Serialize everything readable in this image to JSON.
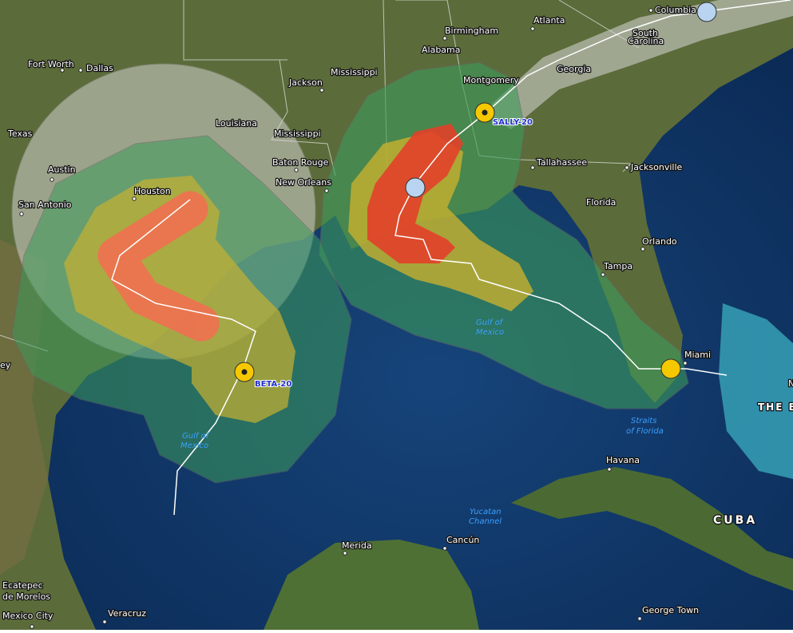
{
  "map": {
    "labels": [
      {
        "text": "Fort Worth"
      },
      {
        "text": "Dallas"
      },
      {
        "text": "Texas"
      },
      {
        "text": "Austin"
      },
      {
        "text": "San Antonio"
      },
      {
        "text": "Houston"
      },
      {
        "text": "Louisiana"
      },
      {
        "text": "Mississippi"
      },
      {
        "text": "Mississippi"
      },
      {
        "text": "Jackson"
      },
      {
        "text": "Baton Rouge"
      },
      {
        "text": "New Orleans"
      },
      {
        "text": "Birmingham"
      },
      {
        "text": "Alabama"
      },
      {
        "text": "Atlanta"
      },
      {
        "text": "Georgia"
      },
      {
        "text": "Columbia"
      },
      {
        "text": "South"
      },
      {
        "text": "Carolina"
      },
      {
        "text": "Montgomery"
      },
      {
        "text": "Tallahassee"
      },
      {
        "text": "Jacksonville"
      },
      {
        "text": "Florida"
      },
      {
        "text": "Orlando"
      },
      {
        "text": "Tampa"
      },
      {
        "text": "Miami"
      },
      {
        "text": "Havana"
      },
      {
        "text": "CUBA"
      },
      {
        "text": "THE B"
      },
      {
        "text": "N"
      },
      {
        "text": "Cancún"
      },
      {
        "text": "Merida"
      },
      {
        "text": "Ecatepec"
      },
      {
        "text": "de Morelos"
      },
      {
        "text": "Mexico City"
      },
      {
        "text": "Veracruz"
      },
      {
        "text": "George Town"
      },
      {
        "text": "ey"
      }
    ],
    "water_labels": [
      {
        "text": "Gulf of"
      },
      {
        "text": "Mexico"
      },
      {
        "text": "Gulf of"
      },
      {
        "text": "Mexico"
      },
      {
        "text": "Straits"
      },
      {
        "text": "of Florida"
      },
      {
        "text": "Yucatan"
      },
      {
        "text": "Channel"
      }
    ],
    "storms": [
      {
        "name": "SALLY-20"
      },
      {
        "name": "BETA-20"
      }
    ]
  }
}
